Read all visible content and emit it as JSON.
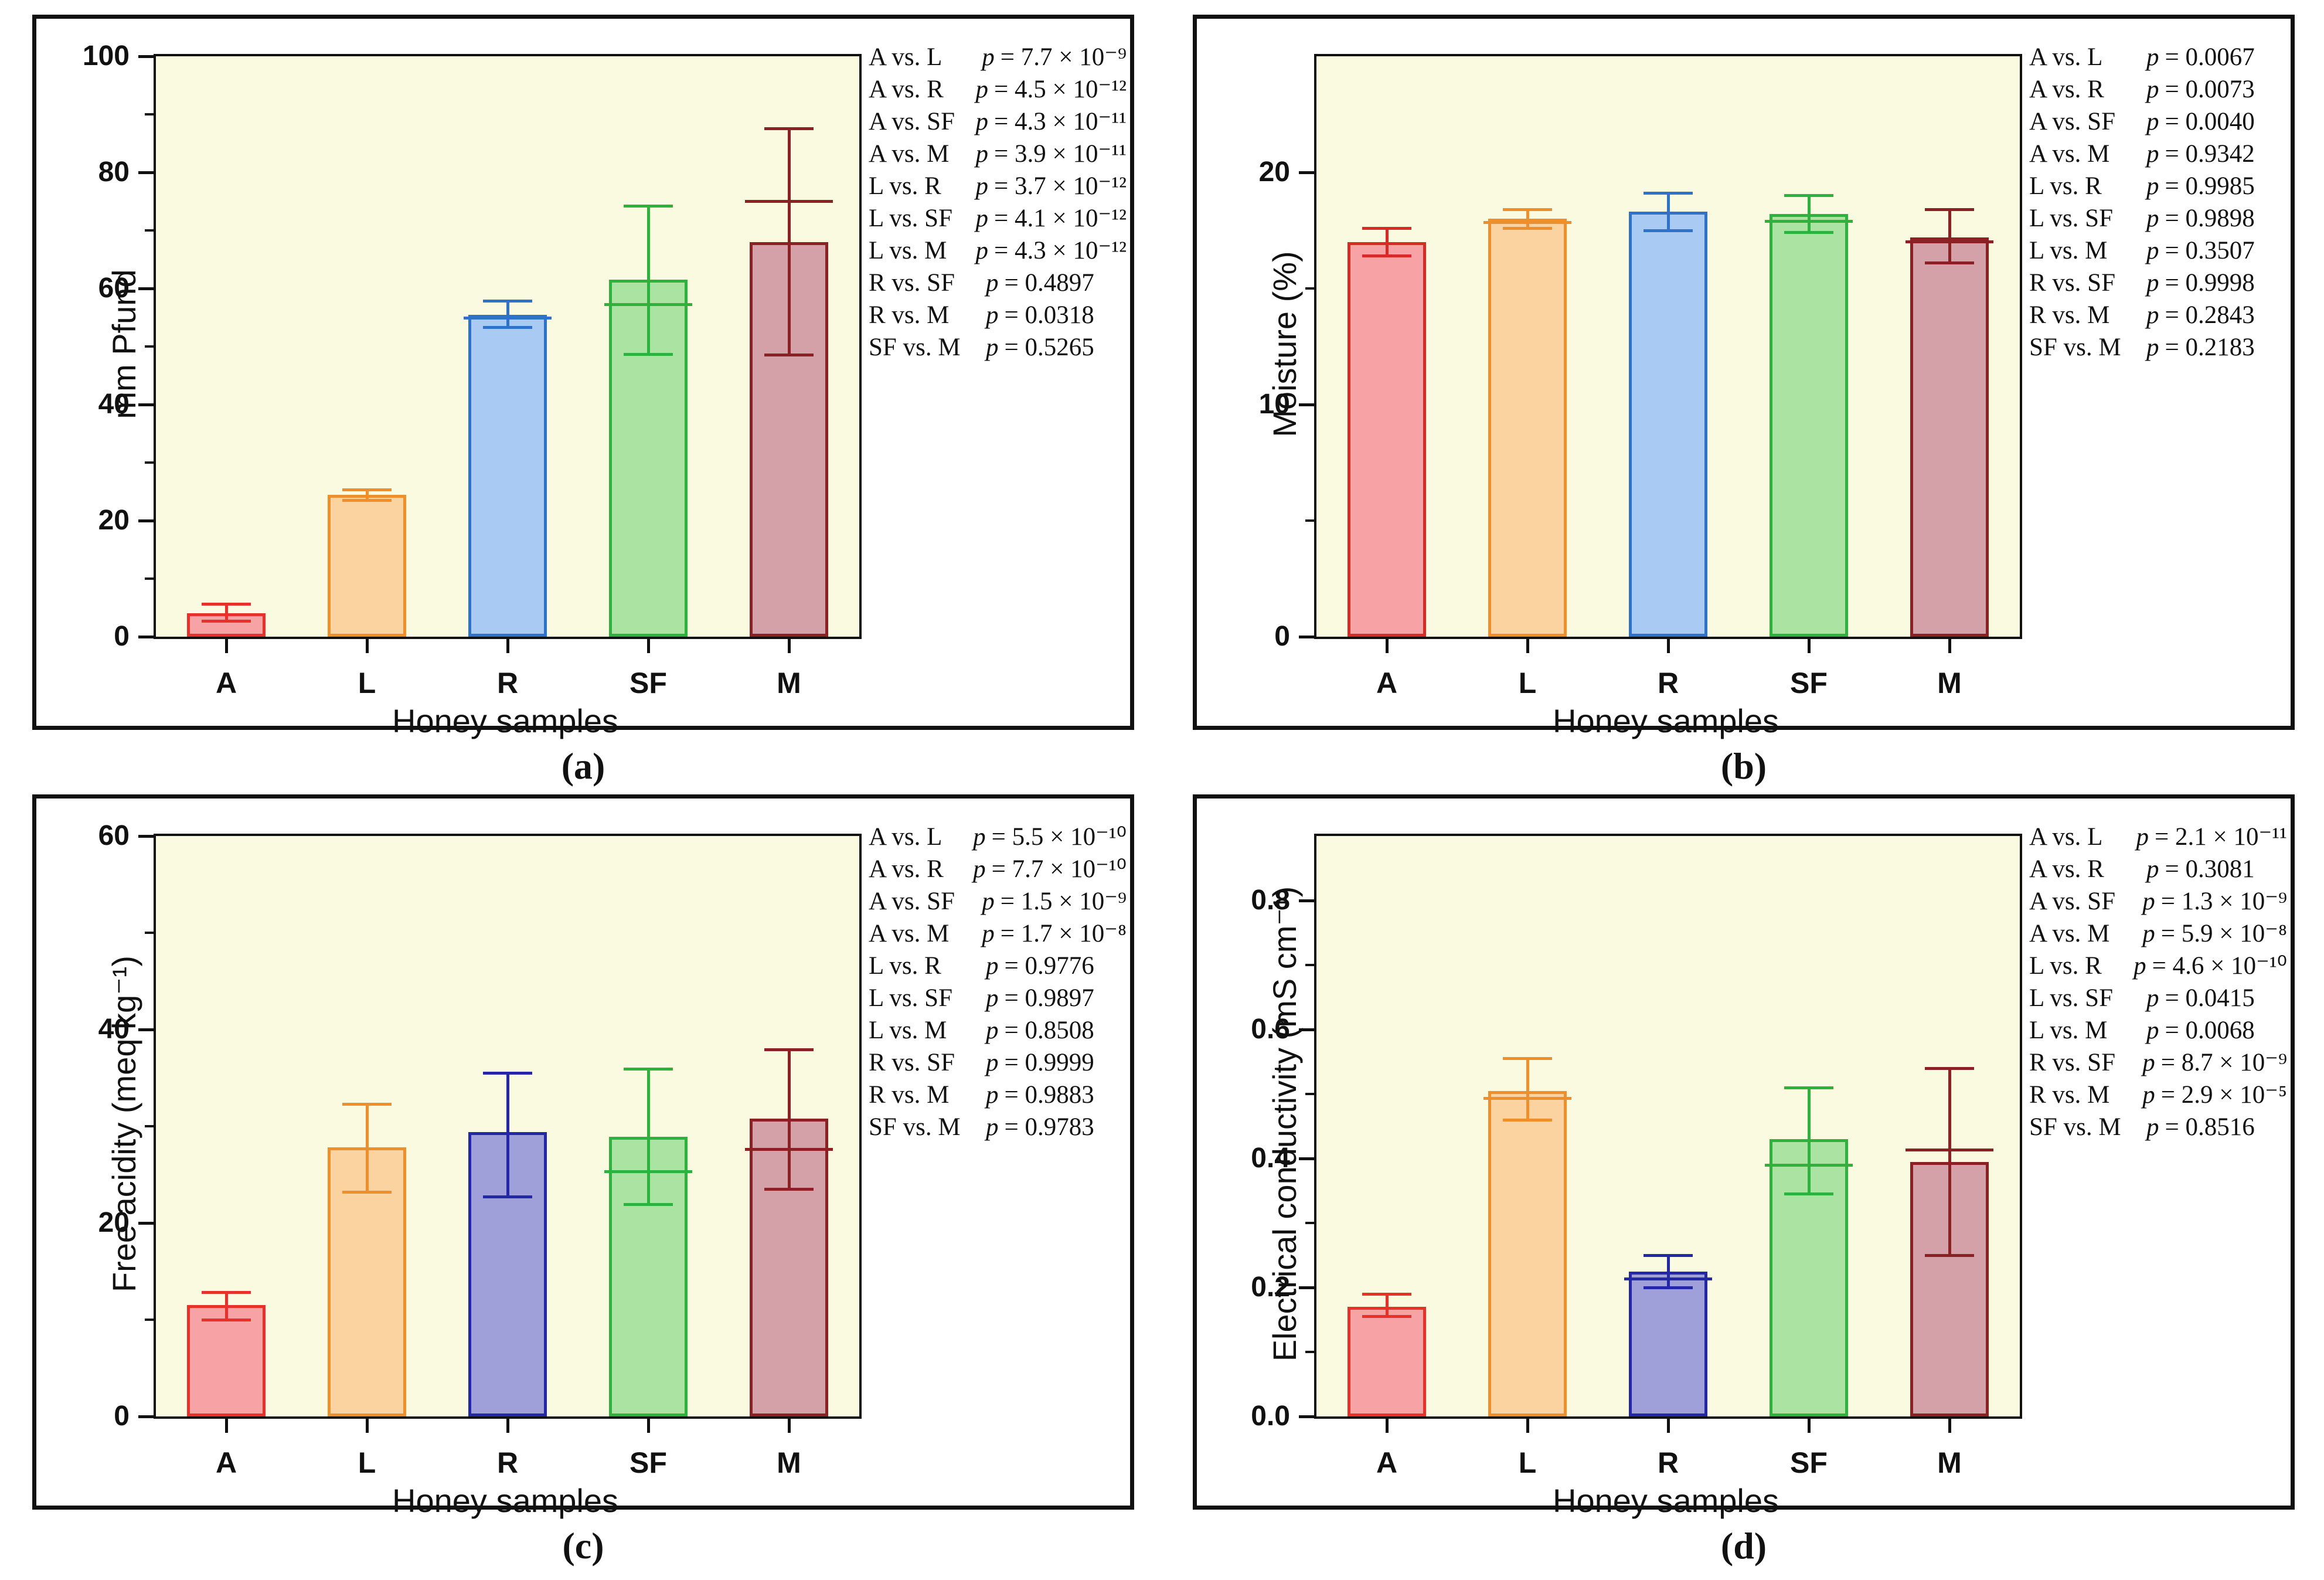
{
  "figure": {
    "p_symbol": "p",
    "background": "#ffffff",
    "plot_background": "#fafae1",
    "frame_color": "#111111",
    "legend_position": "right"
  },
  "chart_data": [
    {
      "id": "a",
      "caption": "(a)",
      "type": "bar",
      "title": "",
      "xlabel": "Honey samples",
      "ylabel": "mm Pfund",
      "ylim": [
        0,
        100
      ],
      "grid": false,
      "yticks": [
        {
          "label": "0",
          "value": 0
        },
        {
          "label": "20",
          "value": 20
        },
        {
          "label": "40",
          "value": 40
        },
        {
          "label": "60",
          "value": 60
        },
        {
          "label": "80",
          "value": 80
        },
        {
          "label": "100",
          "value": 100
        }
      ],
      "minor_ticks": [
        10,
        30,
        50,
        70,
        90
      ],
      "categories": [
        "A",
        "L",
        "R",
        "SF",
        "M"
      ],
      "values": [
        4.0,
        24.4,
        55.5,
        61.5,
        68.0
      ],
      "bars": [
        {
          "category": "A",
          "value": 4.0,
          "err_low": 2.7,
          "err_high": 5.6,
          "median": null,
          "fill": "#f7a2a4",
          "stroke": "#e8312a"
        },
        {
          "category": "L",
          "value": 24.4,
          "err_low": 23.5,
          "err_high": 25.3,
          "median": null,
          "fill": "#fad3a0",
          "stroke": "#ee8f2b"
        },
        {
          "category": "R",
          "value": 55.5,
          "err_low": 53.3,
          "err_high": 57.8,
          "median": 54.9,
          "fill": "#a9caf2",
          "stroke": "#2f72ca"
        },
        {
          "category": "SF",
          "value": 61.5,
          "err_low": 48.6,
          "err_high": 74.2,
          "median": 57.2,
          "fill": "#abe3a3",
          "stroke": "#2db33d"
        },
        {
          "category": "M",
          "value": 68.0,
          "err_low": 48.5,
          "err_high": 87.5,
          "median": 75.0,
          "fill": "#d3a1a7",
          "stroke": "#8c2125"
        }
      ],
      "legend": [
        {
          "pair": "A vs. L",
          "value": "= 7.7 × 10⁻⁹"
        },
        {
          "pair": "A vs. R",
          "value": "= 4.5 × 10⁻¹²"
        },
        {
          "pair": "A vs. SF",
          "value": "= 4.3 × 10⁻¹¹"
        },
        {
          "pair": "A vs. M",
          "value": "= 3.9 × 10⁻¹¹"
        },
        {
          "pair": "L vs. R",
          "value": "= 3.7 × 10⁻¹²"
        },
        {
          "pair": "L vs. SF",
          "value": "= 4.1 × 10⁻¹²"
        },
        {
          "pair": "L vs. M",
          "value": "= 4.3 × 10⁻¹²"
        },
        {
          "pair": "R vs. SF",
          "value": "= 0.4897"
        },
        {
          "pair": "R vs. M",
          "value": "= 0.0318"
        },
        {
          "pair": "SF vs. M",
          "value": "= 0.5265"
        }
      ]
    },
    {
      "id": "b",
      "caption": "(b)",
      "type": "bar",
      "title": "",
      "xlabel": "Honey samples",
      "ylabel": "Moisture (%)",
      "ylim": [
        0,
        25
      ],
      "grid": false,
      "yticks": [
        {
          "label": "0",
          "value": 0
        },
        {
          "label": "10",
          "value": 10
        },
        {
          "label": "20",
          "value": 20
        }
      ],
      "minor_ticks": [
        5,
        15
      ],
      "categories": [
        "A",
        "L",
        "R",
        "SF",
        "M"
      ],
      "values": [
        17.0,
        18.0,
        18.3,
        18.2,
        17.2
      ],
      "bars": [
        {
          "category": "A",
          "value": 17.0,
          "err_low": 16.4,
          "err_high": 17.6,
          "median": null,
          "fill": "#f7a2a4",
          "stroke": "#d92b26"
        },
        {
          "category": "L",
          "value": 18.0,
          "err_low": 17.6,
          "err_high": 18.4,
          "median": 17.85,
          "fill": "#fad3a0",
          "stroke": "#ee8f2b"
        },
        {
          "category": "R",
          "value": 18.3,
          "err_low": 17.5,
          "err_high": 19.1,
          "median": null,
          "fill": "#a9caf2",
          "stroke": "#2f72ca"
        },
        {
          "category": "SF",
          "value": 18.2,
          "err_low": 17.4,
          "err_high": 19.0,
          "median": 17.9,
          "fill": "#abe3a3",
          "stroke": "#2db33d"
        },
        {
          "category": "M",
          "value": 17.2,
          "err_low": 16.1,
          "err_high": 18.4,
          "median": 17.0,
          "fill": "#d3a1a7",
          "stroke": "#8c2125"
        }
      ],
      "legend": [
        {
          "pair": "A vs. L",
          "value": "= 0.0067"
        },
        {
          "pair": "A vs. R",
          "value": "= 0.0073"
        },
        {
          "pair": "A vs. SF",
          "value": "= 0.0040"
        },
        {
          "pair": "A vs. M",
          "value": "= 0.9342"
        },
        {
          "pair": "L vs. R",
          "value": "= 0.9985"
        },
        {
          "pair": "L vs. SF",
          "value": "= 0.9898"
        },
        {
          "pair": "L vs. M",
          "value": "= 0.3507"
        },
        {
          "pair": "R vs. SF",
          "value": "= 0.9998"
        },
        {
          "pair": "R vs. M",
          "value": "= 0.2843"
        },
        {
          "pair": "SF vs. M",
          "value": "= 0.2183"
        }
      ]
    },
    {
      "id": "c",
      "caption": "(c)",
      "type": "bar",
      "title": "",
      "xlabel": "Honey samples",
      "ylabel": "Free acidity (meq kg⁻¹)",
      "ylim": [
        0,
        60
      ],
      "grid": false,
      "yticks": [
        {
          "label": "0",
          "value": 0
        },
        {
          "label": "20",
          "value": 20
        },
        {
          "label": "40",
          "value": 40
        },
        {
          "label": "60",
          "value": 60
        }
      ],
      "minor_ticks": [
        10,
        30,
        50
      ],
      "categories": [
        "A",
        "L",
        "R",
        "SF",
        "M"
      ],
      "values": [
        11.5,
        27.8,
        29.4,
        28.9,
        30.8
      ],
      "bars": [
        {
          "category": "A",
          "value": 11.5,
          "err_low": 10.0,
          "err_high": 12.8,
          "median": null,
          "fill": "#f7a2a4",
          "stroke": "#e8312a"
        },
        {
          "category": "L",
          "value": 27.8,
          "err_low": 23.2,
          "err_high": 32.3,
          "median": null,
          "fill": "#fad3a0",
          "stroke": "#ee8f2b"
        },
        {
          "category": "R",
          "value": 29.4,
          "err_low": 22.7,
          "err_high": 35.5,
          "median": null,
          "fill": "#9fa0da",
          "stroke": "#2327a8"
        },
        {
          "category": "SF",
          "value": 28.9,
          "err_low": 21.9,
          "err_high": 35.9,
          "median": 25.3,
          "fill": "#abe3a3",
          "stroke": "#2db33d"
        },
        {
          "category": "M",
          "value": 30.8,
          "err_low": 23.5,
          "err_high": 37.9,
          "median": 27.6,
          "fill": "#d3a1a7",
          "stroke": "#8c2125"
        }
      ],
      "legend": [
        {
          "pair": "A vs. L",
          "value": "= 5.5 × 10⁻¹⁰"
        },
        {
          "pair": "A vs. R",
          "value": "= 7.7 × 10⁻¹⁰"
        },
        {
          "pair": "A vs. SF",
          "value": "= 1.5 × 10⁻⁹"
        },
        {
          "pair": "A vs. M",
          "value": "= 1.7 × 10⁻⁸"
        },
        {
          "pair": "L vs. R",
          "value": "= 0.9776"
        },
        {
          "pair": "L vs. SF",
          "value": "= 0.9897"
        },
        {
          "pair": "L vs. M",
          "value": "= 0.8508"
        },
        {
          "pair": "R vs. SF",
          "value": "= 0.9999"
        },
        {
          "pair": "R vs. M",
          "value": "= 0.9883"
        },
        {
          "pair": "SF vs. M",
          "value": "= 0.9783"
        }
      ]
    },
    {
      "id": "d",
      "caption": "(d)",
      "type": "bar",
      "title": "",
      "xlabel": "Honey samples",
      "ylabel": "Electrical conductivity (mS cm⁻¹)",
      "ylim": [
        0,
        0.9
      ],
      "grid": false,
      "yticks": [
        {
          "label": "0.0",
          "value": 0.0
        },
        {
          "label": "0.2",
          "value": 0.2
        },
        {
          "label": "0.4",
          "value": 0.4
        },
        {
          "label": "0.6",
          "value": 0.6
        },
        {
          "label": "0.8",
          "value": 0.8
        }
      ],
      "minor_ticks": [
        0.1,
        0.3,
        0.5,
        0.7
      ],
      "categories": [
        "A",
        "L",
        "R",
        "SF",
        "M"
      ],
      "values": [
        0.17,
        0.505,
        0.225,
        0.43,
        0.395
      ],
      "bars": [
        {
          "category": "A",
          "value": 0.17,
          "err_low": 0.155,
          "err_high": 0.19,
          "median": null,
          "fill": "#f7a2a4",
          "stroke": "#e8312a"
        },
        {
          "category": "L",
          "value": 0.505,
          "err_low": 0.46,
          "err_high": 0.555,
          "median": 0.493,
          "fill": "#fad3a0",
          "stroke": "#ee8f2b"
        },
        {
          "category": "R",
          "value": 0.225,
          "err_low": 0.2,
          "err_high": 0.25,
          "median": 0.213,
          "fill": "#9fa0da",
          "stroke": "#2327a8"
        },
        {
          "category": "SF",
          "value": 0.43,
          "err_low": 0.345,
          "err_high": 0.51,
          "median": 0.39,
          "fill": "#abe3a3",
          "stroke": "#2db33d"
        },
        {
          "category": "M",
          "value": 0.395,
          "err_low": 0.25,
          "err_high": 0.54,
          "median": 0.413,
          "fill": "#d3a1a7",
          "stroke": "#8c2125"
        }
      ],
      "legend": [
        {
          "pair": "A vs. L",
          "value": "= 2.1 × 10⁻¹¹"
        },
        {
          "pair": "A vs. R",
          "value": "= 0.3081"
        },
        {
          "pair": "A vs. SF",
          "value": "= 1.3 × 10⁻⁹"
        },
        {
          "pair": "A vs. M",
          "value": "= 5.9 × 10⁻⁸"
        },
        {
          "pair": "L vs. R",
          "value": "= 4.6 × 10⁻¹⁰"
        },
        {
          "pair": "L vs. SF",
          "value": "= 0.0415"
        },
        {
          "pair": "L vs. M",
          "value": "= 0.0068"
        },
        {
          "pair": "R vs. SF",
          "value": "= 8.7 × 10⁻⁹"
        },
        {
          "pair": "R vs. M",
          "value": "= 2.9 × 10⁻⁵"
        },
        {
          "pair": "SF vs. M",
          "value": "= 0.8516"
        }
      ]
    }
  ]
}
